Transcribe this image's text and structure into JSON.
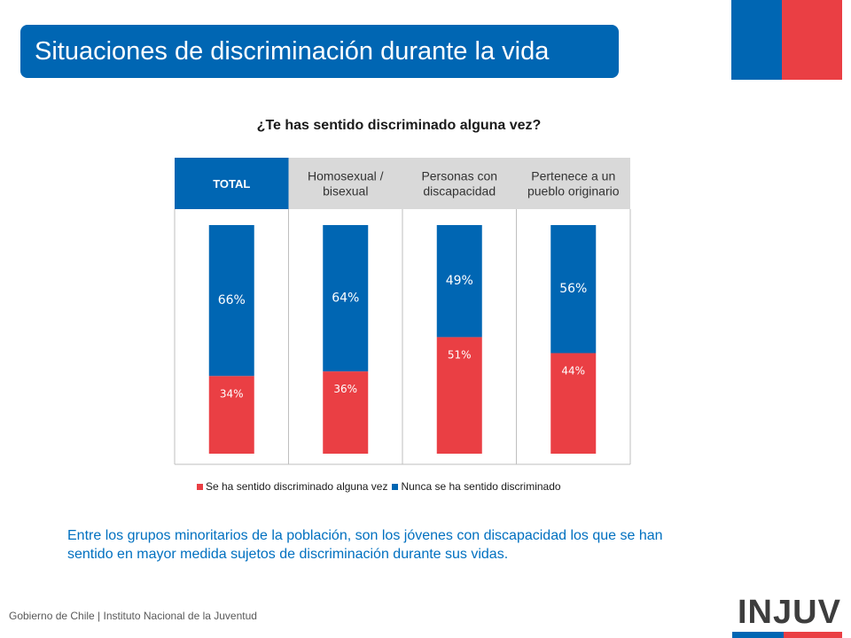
{
  "header": {
    "title": "Situaciones de discriminación durante la vida"
  },
  "colors": {
    "blue": "#0066b3",
    "red": "#ea3f44",
    "header_gray": "#d9d9d9"
  },
  "chart_data": {
    "type": "bar",
    "stacked": true,
    "title": "¿Te has sentido discriminado alguna vez?",
    "categories": [
      "TOTAL",
      "Homosexual / bisexual",
      "Personas con discapacidad",
      "Pertenece a un pueblo originario"
    ],
    "category_lines": [
      [
        "TOTAL"
      ],
      [
        "Homosexual /",
        "bisexual"
      ],
      [
        "Personas con",
        "discapacidad"
      ],
      [
        "Pertenece a un",
        "pueblo originario"
      ]
    ],
    "highlighted_category": "TOTAL",
    "series": [
      {
        "name": "Se ha sentido discriminado alguna vez",
        "values": [
          34,
          36,
          51,
          44
        ],
        "labels": [
          "34%",
          "36%",
          "51%",
          "44%"
        ],
        "color": "#ea3f44"
      },
      {
        "name": "Nunca se ha sentido discriminado",
        "values": [
          66,
          64,
          49,
          56
        ],
        "labels": [
          "66%",
          "64%",
          "49%",
          "56%"
        ],
        "color": "#0066b3"
      }
    ],
    "ylim": [
      0,
      100
    ],
    "legend": "bottom"
  },
  "caption": "Entre los grupos minoritarios de la población, son los jóvenes con discapacidad los que se han sentido en mayor medida sujetos de discriminación durante sus vidas.",
  "footer": "Gobierno de Chile | Instituto Nacional de la Juventud",
  "logo": {
    "text": "INJUV"
  }
}
